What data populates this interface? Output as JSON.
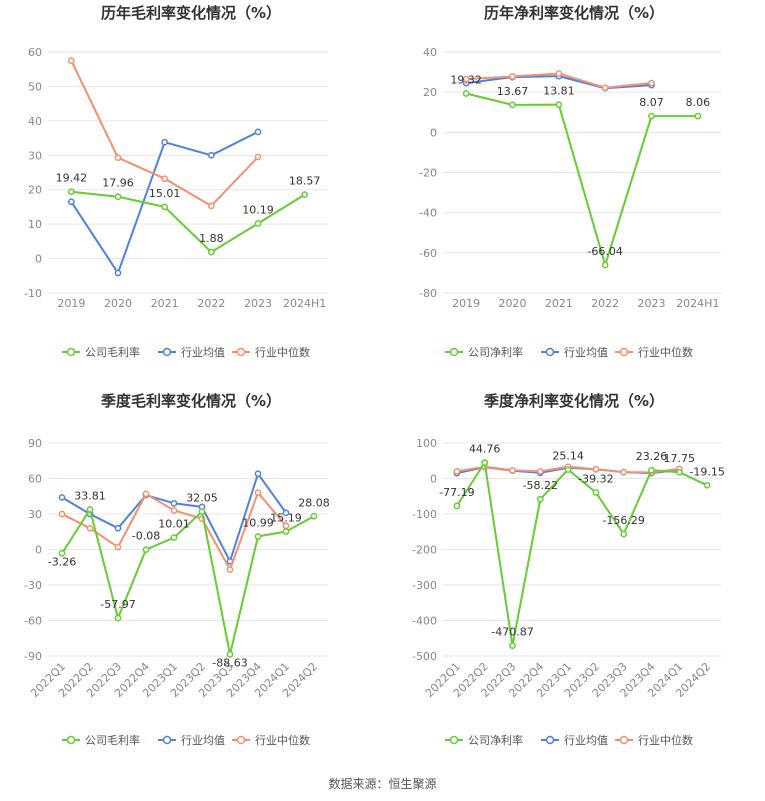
{
  "colors": {
    "company": "#66cc33",
    "avg": "#4f81dc",
    "median": "#f4906e"
  },
  "legend_labels": [],
  "source": "数据来源：恒生聚源",
  "chart_data": [
    {
      "type": "line",
      "title": "历年毛利率变化情况（%）",
      "categories": [
        "2019",
        "2020",
        "2021",
        "2022",
        "2023",
        "2024H1"
      ],
      "ylim": [
        -10,
        60
      ],
      "yticks": [
        60,
        50,
        40,
        30,
        20,
        10,
        0,
        -10
      ],
      "rotate_x": false,
      "series": [
        {
          "name": "公司毛利率",
          "key": "company",
          "values": [
            19.42,
            17.96,
            15.01,
            1.88,
            10.19,
            18.57
          ],
          "labels": [
            "19.42",
            "17.96",
            "15.01",
            "1.88",
            "10.19",
            "18.57"
          ]
        },
        {
          "name": "行业均值",
          "key": "avg",
          "values": [
            16.5,
            -4.2,
            33.8,
            30.0,
            36.8,
            null
          ]
        },
        {
          "name": "行业中位数",
          "key": "median",
          "values": [
            57.5,
            29.3,
            23.2,
            15.3,
            29.5,
            null
          ]
        }
      ]
    },
    {
      "type": "line",
      "title": "历年净利率变化情况（%）",
      "categories": [
        "2019",
        "2020",
        "2021",
        "2022",
        "2023",
        "2024H1"
      ],
      "ylim": [
        -80,
        40
      ],
      "yticks": [
        40,
        20,
        0,
        -20,
        -40,
        -60,
        -80
      ],
      "rotate_x": false,
      "series": [
        {
          "name": "公司净利率",
          "key": "company",
          "values": [
            19.32,
            13.67,
            13.81,
            -66.04,
            8.07,
            8.06
          ],
          "labels": [
            "19.32",
            "13.67",
            "13.81",
            "-66.04",
            "8.07",
            "8.06"
          ]
        },
        {
          "name": "行业均值",
          "key": "avg",
          "values": [
            24.5,
            27.5,
            28.0,
            22.0,
            23.5,
            null
          ]
        },
        {
          "name": "行业中位数",
          "key": "median",
          "values": [
            26.5,
            27.8,
            29.3,
            22.2,
            24.5,
            null
          ]
        }
      ]
    },
    {
      "type": "line",
      "title": "季度毛利率变化情况（%）",
      "categories": [
        "2022Q1",
        "2022Q2",
        "2022Q3",
        "2022Q4",
        "2023Q1",
        "2023Q2",
        "2023Q3",
        "2023Q4",
        "2024Q1",
        "2024Q2"
      ],
      "ylim": [
        -90,
        90
      ],
      "yticks": [
        90,
        60,
        30,
        0,
        -30,
        -60,
        -90
      ],
      "rotate_x": true,
      "series": [
        {
          "name": "公司毛利率",
          "key": "company",
          "values": [
            -3.26,
            33.81,
            -57.97,
            -0.08,
            10.01,
            32.05,
            -88.63,
            10.99,
            15.19,
            28.08
          ],
          "labels": [
            "-3.26",
            "33.81",
            "-57.97",
            "-0.08",
            "10.01",
            "32.05",
            "-88.63",
            "10.99",
            "15.19",
            "28.08"
          ]
        },
        {
          "name": "行业均值",
          "key": "avg",
          "values": [
            44,
            30,
            18,
            46,
            39,
            36,
            -10,
            64,
            31,
            null
          ]
        },
        {
          "name": "行业中位数",
          "key": "median",
          "values": [
            30,
            18,
            2,
            47,
            33,
            26,
            -17,
            48,
            20,
            null
          ]
        }
      ]
    },
    {
      "type": "line",
      "title": "季度净利率变化情况（%）",
      "categories": [
        "2022Q1",
        "2022Q2",
        "2022Q3",
        "2022Q4",
        "2023Q1",
        "2023Q2",
        "2023Q3",
        "2023Q4",
        "2024Q1",
        "2024Q2"
      ],
      "ylim": [
        -500,
        100
      ],
      "yticks": [
        100,
        0,
        -100,
        -200,
        -300,
        -400,
        -500
      ],
      "rotate_x": true,
      "series": [
        {
          "name": "公司净利率",
          "key": "company",
          "values": [
            -77.19,
            44.76,
            -470.87,
            -58.22,
            25.14,
            -39.32,
            -156.29,
            23.26,
            17.75,
            -19.15
          ],
          "labels": [
            "-77.19",
            "44.76",
            "-470.87",
            "-58.22",
            "25.14",
            "-39.32",
            "-156.29",
            "23.26",
            "17.75",
            "-19.15"
          ]
        },
        {
          "name": "行业均值",
          "key": "avg",
          "values": [
            15,
            32,
            22,
            16,
            30,
            26,
            18,
            15,
            25,
            null
          ]
        },
        {
          "name": "行业中位数",
          "key": "median",
          "values": [
            20,
            33,
            23,
            20,
            33,
            26,
            18,
            17,
            27,
            null
          ]
        }
      ]
    }
  ]
}
